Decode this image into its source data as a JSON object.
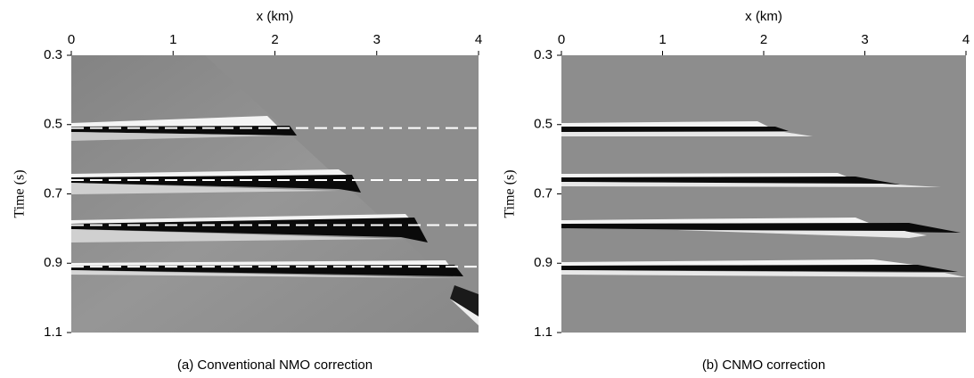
{
  "chart_data": [
    {
      "type": "image",
      "title": "(a) Conventional NMO correction",
      "xlabel": "x (km)",
      "ylabel": "Time (s)",
      "xlim": [
        0,
        4
      ],
      "xticks": [
        0,
        1,
        2,
        3,
        4
      ],
      "ylim": [
        0.3,
        1.1
      ],
      "yticks": [
        0.3,
        0.5,
        0.7,
        0.9,
        1.1
      ],
      "y_inverted": true,
      "hlines": [
        0.51,
        0.66,
        0.79,
        0.91
      ],
      "hline_color": "#ffffff"
    },
    {
      "type": "image",
      "title": "(b) CNMO correction",
      "xlabel": "x (km)",
      "ylabel": "Time (s)",
      "xlim": [
        0,
        4
      ],
      "xticks": [
        0,
        1,
        2,
        3,
        4
      ],
      "ylim": [
        0.3,
        1.1
      ],
      "yticks": [
        0.3,
        0.5,
        0.7,
        0.9,
        1.1
      ],
      "y_inverted": true
    }
  ]
}
